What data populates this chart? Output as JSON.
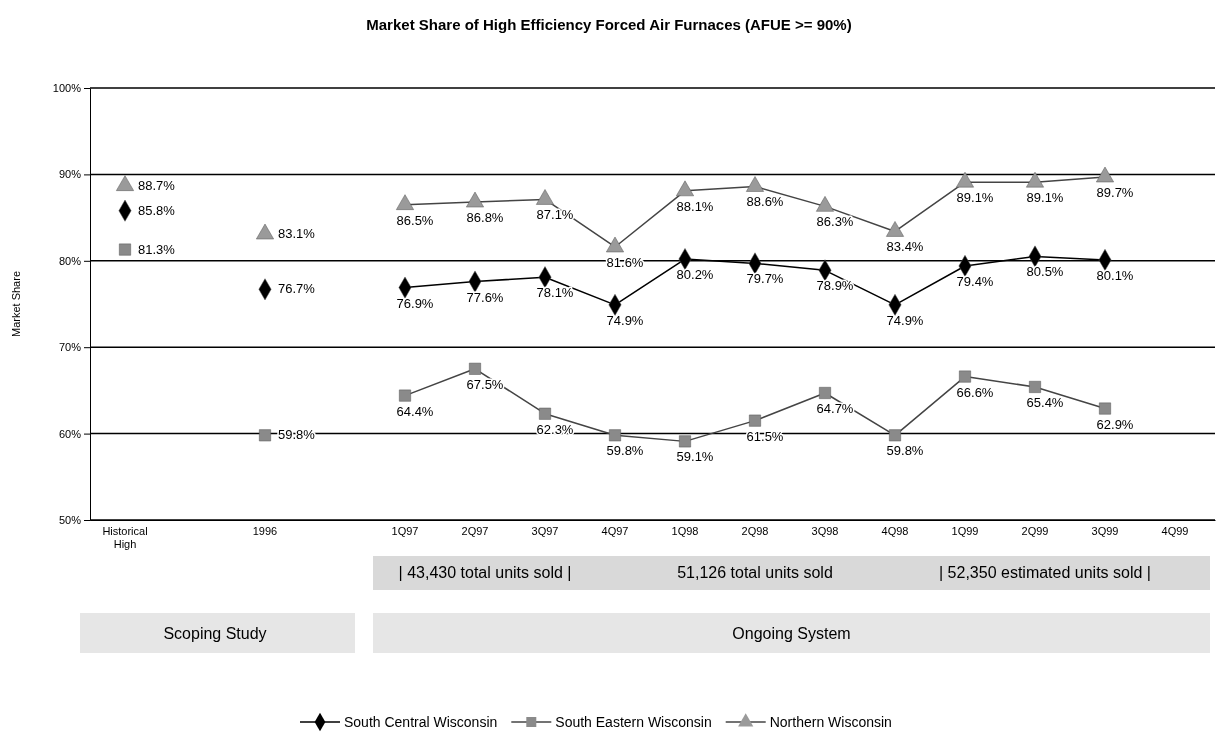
{
  "chart_data": {
    "type": "line",
    "title": "Market Share of High Efficiency Forced Air Furnaces (AFUE >= 90%)",
    "ylabel": "Market Share",
    "categories": [
      "Historical High",
      null,
      "1996",
      null,
      "1Q97",
      "2Q97",
      "3Q97",
      "4Q97",
      "1Q98",
      "2Q98",
      "3Q98",
      "4Q98",
      "1Q99",
      "2Q99",
      "3Q99",
      "4Q99"
    ],
    "ylim": [
      50,
      100
    ],
    "yticks": [
      {
        "value": 50,
        "label": "50%"
      },
      {
        "value": 60,
        "label": "60%"
      },
      {
        "value": 70,
        "label": "70%"
      },
      {
        "value": 80,
        "label": "80%"
      },
      {
        "value": 90,
        "label": "90%"
      },
      {
        "value": 100,
        "label": "100%"
      }
    ],
    "grid": "y",
    "legend": "bottom",
    "series": [
      {
        "name": "South Central Wisconsin",
        "color": "#000000",
        "marker": "diamond",
        "values": [
          85.8,
          null,
          76.7,
          null,
          76.9,
          77.6,
          78.1,
          74.9,
          80.2,
          79.7,
          78.9,
          74.9,
          79.4,
          80.5,
          80.1,
          null
        ],
        "value_labels": [
          "85.8%",
          null,
          "76.7%",
          null,
          "76.9%",
          "77.6%",
          "78.1%",
          "74.9%",
          "80.2%",
          "79.7%",
          "78.9%",
          "74.9%",
          "79.4%",
          "80.5%",
          "80.1%",
          null
        ]
      },
      {
        "name": "South Eastern Wisconsin",
        "color": "#8a8a8a",
        "marker": "square",
        "values": [
          81.3,
          null,
          59.8,
          null,
          64.4,
          67.5,
          62.3,
          59.8,
          59.1,
          61.5,
          64.7,
          59.8,
          66.6,
          65.4,
          62.9,
          null
        ],
        "value_labels": [
          "81.3%",
          null,
          "59.8%",
          null,
          "64.4%",
          "67.5%",
          "62.3%",
          "59.8%",
          "59.1%",
          "61.5%",
          "64.7%",
          "59.8%",
          "66.6%",
          "65.4%",
          "62.9%",
          null
        ]
      },
      {
        "name": "Northern Wisconsin",
        "color": "#9a9a9a",
        "marker": "triangle",
        "values": [
          88.7,
          null,
          83.1,
          null,
          86.5,
          86.8,
          87.1,
          81.6,
          88.1,
          88.6,
          86.3,
          83.4,
          89.1,
          89.1,
          89.7,
          null
        ],
        "value_labels": [
          "88.7%",
          null,
          "83.1%",
          null,
          "86.5%",
          "86.8%",
          "87.1%",
          "81.6%",
          "88.1%",
          "88.6%",
          "86.3%",
          "83.4%",
          "89.1%",
          "89.1%",
          "89.7%",
          null
        ]
      }
    ],
    "annotations": [
      "| 43,430 total units sold |",
      "51,126 total units sold",
      "| 52,350 estimated units sold |",
      "Scoping Study",
      "Ongoing System"
    ]
  }
}
